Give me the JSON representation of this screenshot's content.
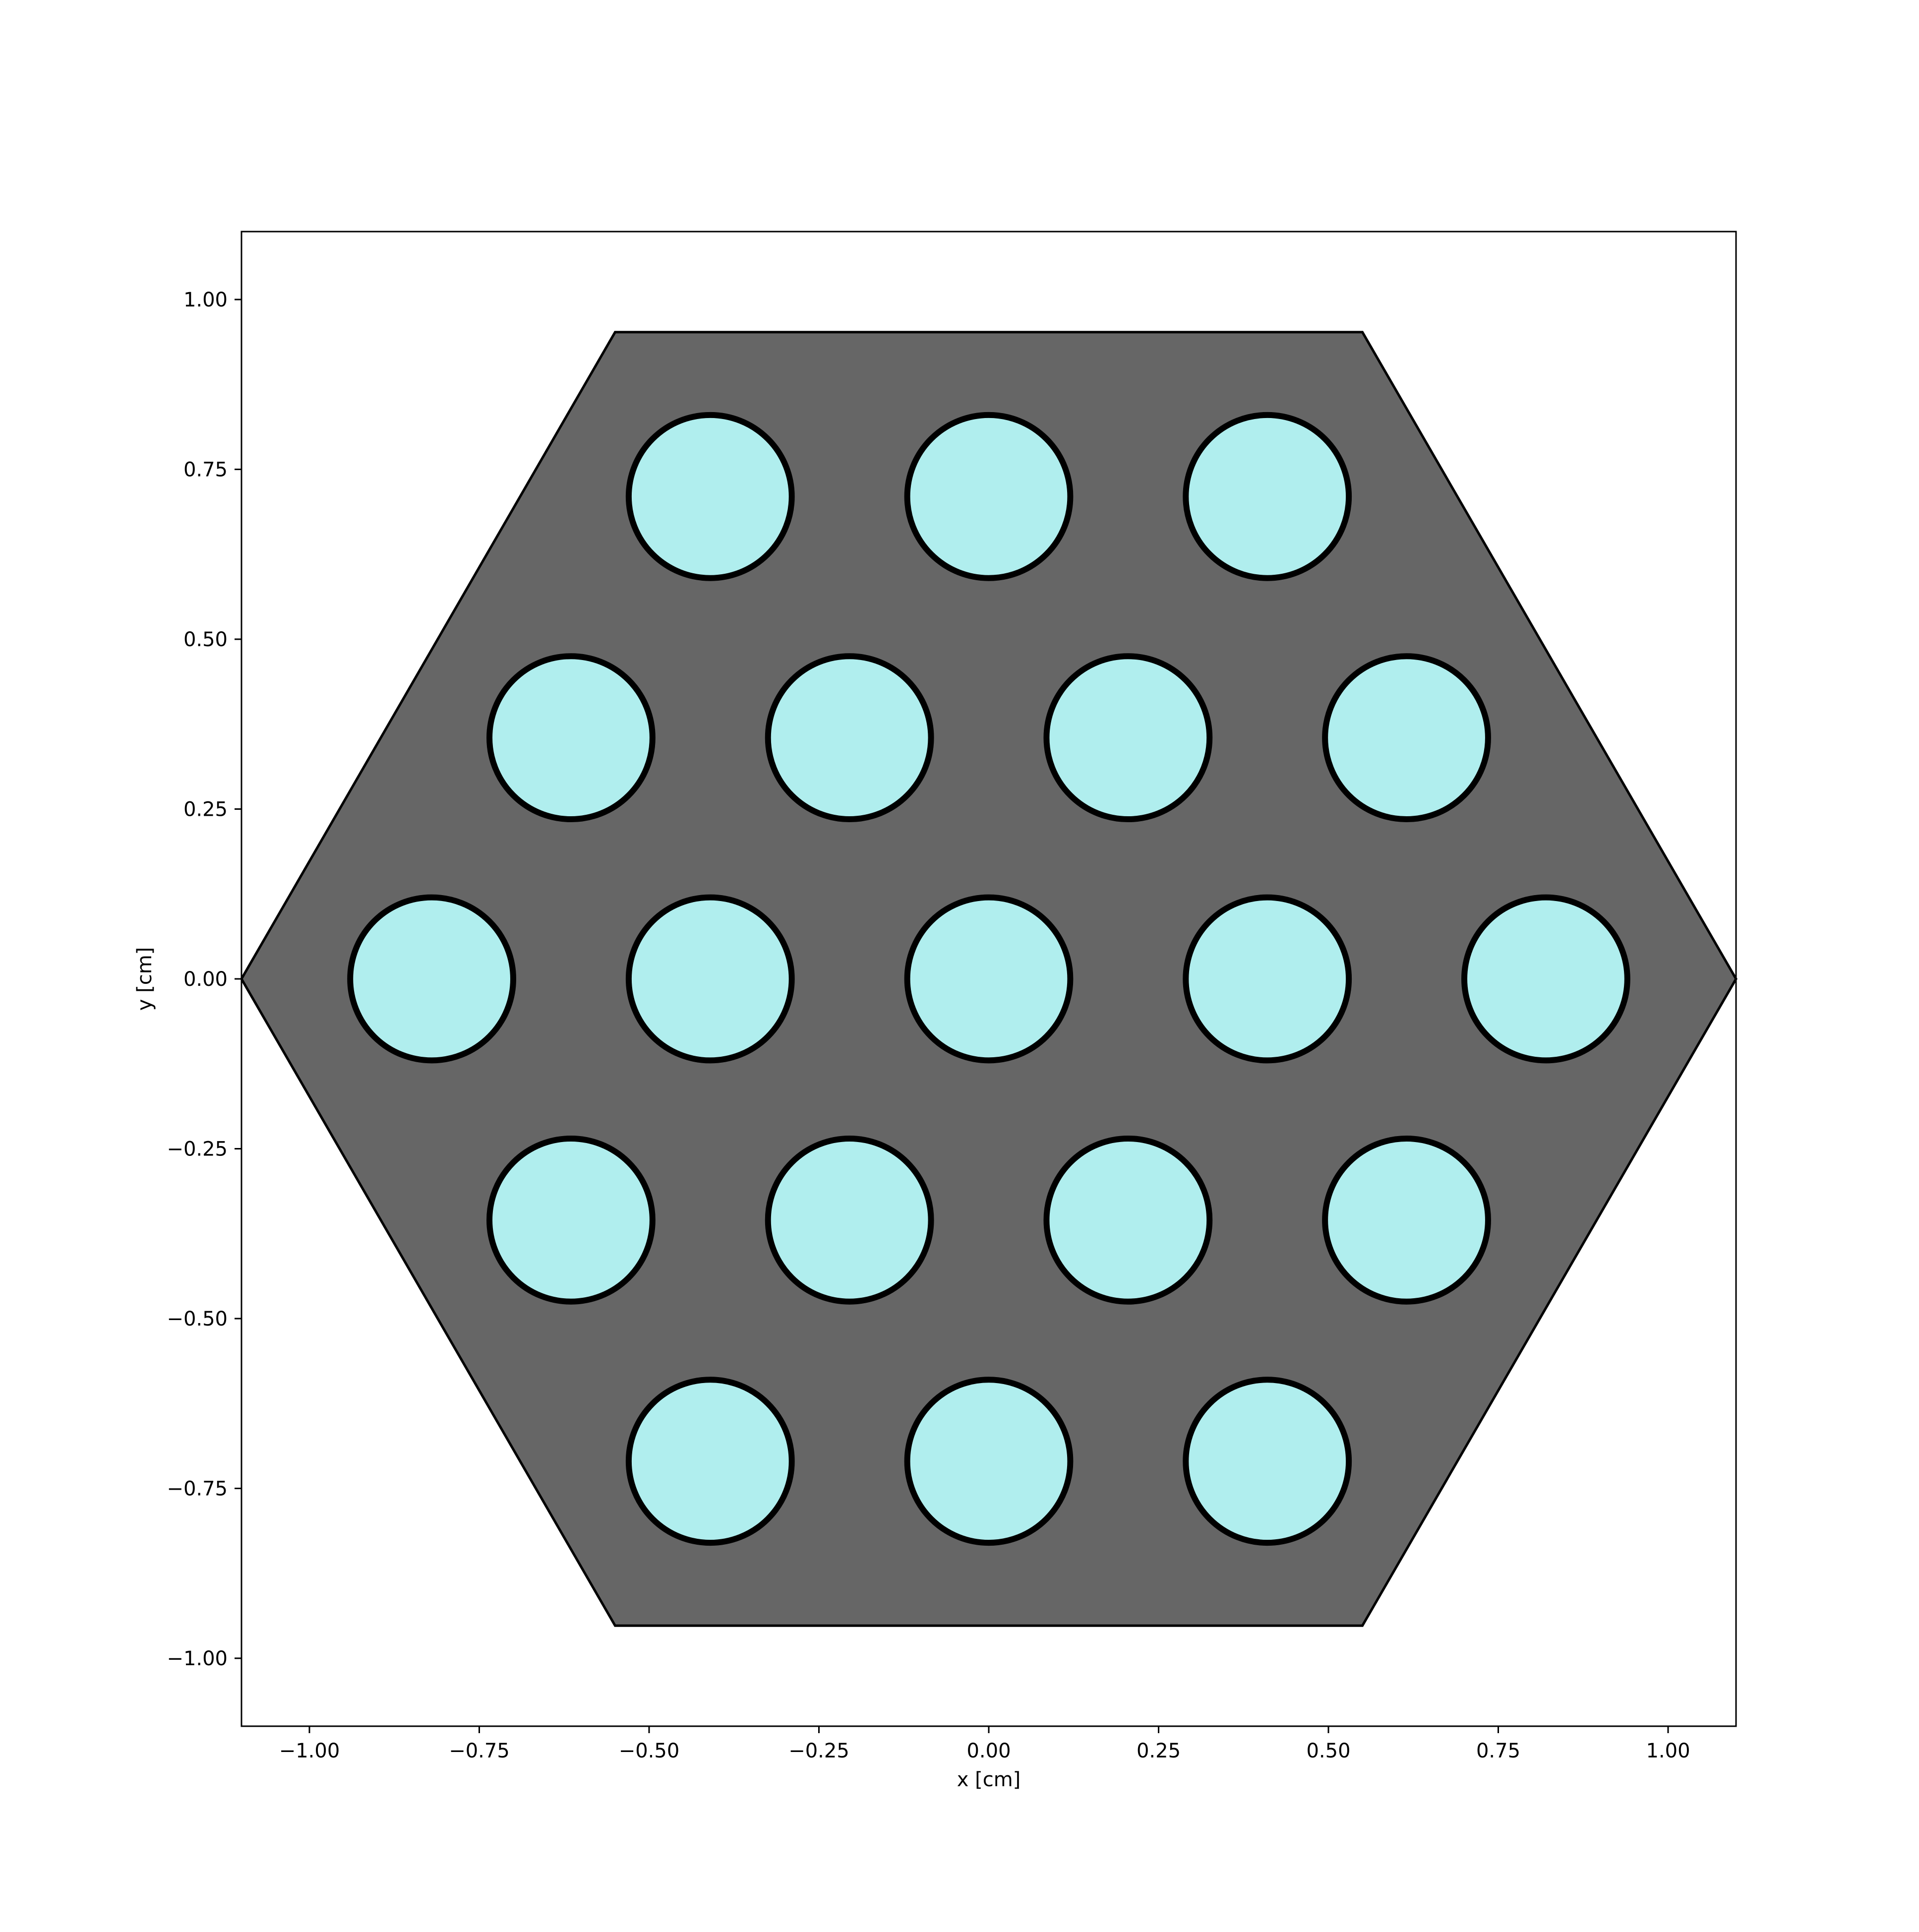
{
  "chart_data": {
    "type": "scatter",
    "title": "",
    "xlabel": "x [cm]",
    "ylabel": "y [cm]",
    "xlim": [
      -1.1,
      1.1
    ],
    "ylim": [
      -1.1,
      1.1
    ],
    "grid": false,
    "x_ticks": [
      -1.0,
      -0.75,
      -0.5,
      -0.25,
      0.0,
      0.25,
      0.5,
      0.75,
      1.0
    ],
    "x_tick_labels": [
      "−1.00",
      "−0.75",
      "−0.50",
      "−0.25",
      "0.00",
      "0.25",
      "0.50",
      "0.75",
      "1.00"
    ],
    "y_ticks": [
      1.0,
      0.75,
      0.5,
      0.25,
      0.0,
      -0.25,
      -0.5,
      -0.75,
      -1.0
    ],
    "y_tick_labels": [
      "1.00",
      "0.75",
      "0.50",
      "0.25",
      "0.00",
      "−0.25",
      "−0.50",
      "−0.75",
      "−1.00"
    ],
    "hexagon": {
      "vertices": [
        [
          -0.55,
          0.952
        ],
        [
          0.55,
          0.952
        ],
        [
          1.1,
          0.0
        ],
        [
          0.55,
          -0.952
        ],
        [
          -0.55,
          -0.952
        ],
        [
          -1.1,
          0.0
        ]
      ],
      "fill": "#666666",
      "edge": "#000000"
    },
    "pin_radius": 0.12,
    "pin_fill": "#b0eeee",
    "pin_edge": "#000000",
    "pins": [
      [
        -0.41,
        0.71
      ],
      [
        0.0,
        0.71
      ],
      [
        0.41,
        0.71
      ],
      [
        -0.615,
        0.355
      ],
      [
        -0.205,
        0.355
      ],
      [
        0.205,
        0.355
      ],
      [
        0.615,
        0.355
      ],
      [
        -0.82,
        0.0
      ],
      [
        -0.41,
        0.0
      ],
      [
        0.0,
        0.0
      ],
      [
        0.41,
        0.0
      ],
      [
        0.82,
        0.0
      ],
      [
        -0.615,
        -0.355
      ],
      [
        -0.205,
        -0.355
      ],
      [
        0.205,
        -0.355
      ],
      [
        0.615,
        -0.355
      ],
      [
        -0.41,
        -0.71
      ],
      [
        0.0,
        -0.71
      ],
      [
        0.41,
        -0.71
      ]
    ]
  }
}
